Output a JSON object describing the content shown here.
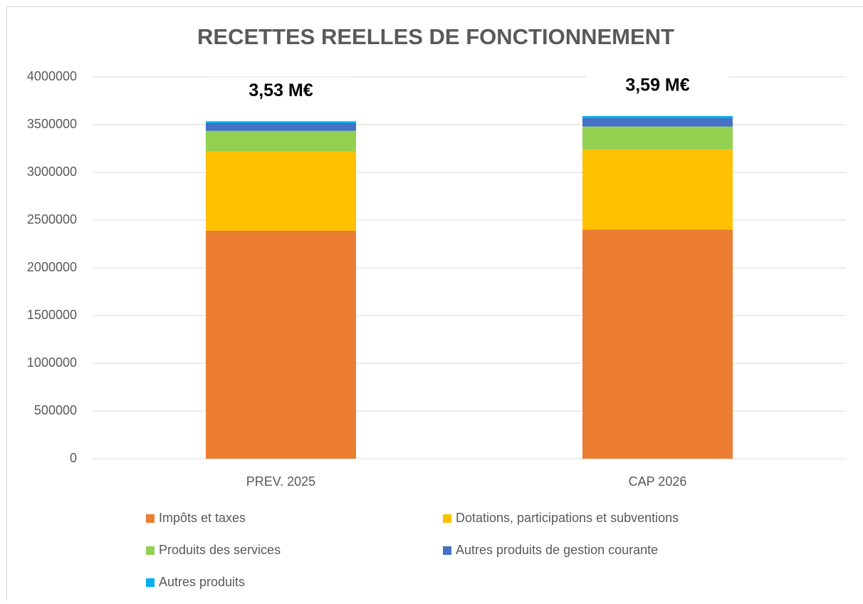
{
  "chart_data": {
    "type": "stacked_bar",
    "title": "RECETTES REELLES DE FONCTIONNEMENT",
    "categories": [
      "PREV. 2025",
      "CAP 2026"
    ],
    "series": [
      {
        "name": "Impôts et taxes",
        "color": "#ed7d31",
        "values": [
          2390000,
          2400000
        ]
      },
      {
        "name": "Dotations, participations et subventions",
        "color": "#ffc000",
        "values": [
          830000,
          840000
        ]
      },
      {
        "name": "Produits des services",
        "color": "#92d050",
        "values": [
          215000,
          240000
        ]
      },
      {
        "name": "Autres produits de gestion courante",
        "color": "#4472c4",
        "values": [
          80000,
          90000
        ]
      },
      {
        "name": "Autres produits",
        "color": "#00b0f0",
        "values": [
          20000,
          20000
        ]
      }
    ],
    "annotations": [
      "3,53 M€",
      "3,59 M€"
    ],
    "ylim": [
      0,
      4000000
    ],
    "yticks": [
      0,
      500000,
      1000000,
      1500000,
      2000000,
      2500000,
      3000000,
      3500000,
      4000000
    ],
    "grid": true,
    "legend": "bottom"
  }
}
